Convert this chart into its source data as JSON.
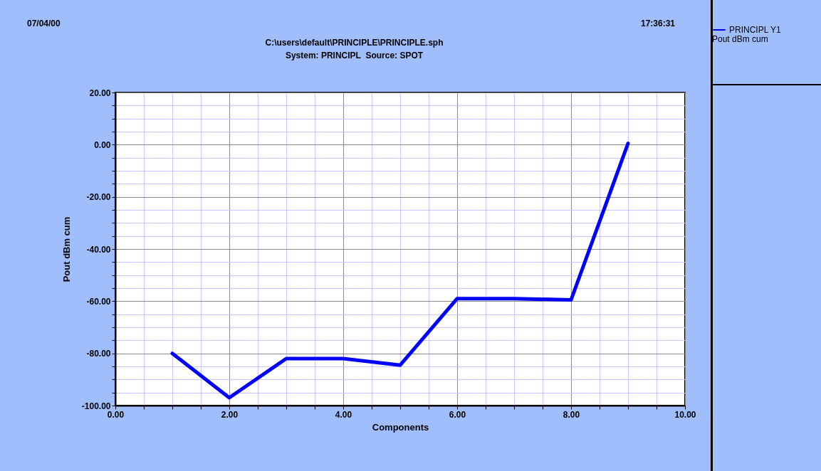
{
  "chart_data": {
    "type": "line",
    "title": "C:\\users\\default\\PRINCIPLE\\PRINCIPLE.sph",
    "subtitle": "System: PRINCIPL  Source: SPOT",
    "xlabel": "Components",
    "ylabel": "Pout dBm cum",
    "legend_title": "Pout dBm cum",
    "annotations": [
      "07/04/00",
      "17:36:31"
    ],
    "x": [
      1,
      2,
      3,
      4,
      5,
      6,
      7,
      8,
      9
    ],
    "series": [
      {
        "name": "PRINCIPL  Y1",
        "color": "#0000ff",
        "values": [
          -80,
          -97,
          -82,
          -82,
          -84.5,
          -59,
          -59,
          -59.5,
          0.5
        ]
      }
    ],
    "xlim": [
      0,
      10
    ],
    "xticks": [
      {
        "value": 0,
        "label": "0.00"
      },
      {
        "value": 0.5,
        "label": null
      },
      {
        "value": 1,
        "label": null
      },
      {
        "value": 1.5,
        "label": null
      },
      {
        "value": 2,
        "label": "2.00"
      },
      {
        "value": 2.5,
        "label": null
      },
      {
        "value": 3,
        "label": null
      },
      {
        "value": 3.5,
        "label": null
      },
      {
        "value": 4,
        "label": "4.00"
      },
      {
        "value": 4.5,
        "label": null
      },
      {
        "value": 5,
        "label": null
      },
      {
        "value": 5.5,
        "label": null
      },
      {
        "value": 6,
        "label": "6.00"
      },
      {
        "value": 6.5,
        "label": null
      },
      {
        "value": 7,
        "label": null
      },
      {
        "value": 7.5,
        "label": null
      },
      {
        "value": 8,
        "label": "8.00"
      },
      {
        "value": 8.5,
        "label": null
      },
      {
        "value": 9,
        "label": null
      },
      {
        "value": 9.5,
        "label": null
      },
      {
        "value": 10,
        "label": "10.00"
      }
    ],
    "ylim": [
      -100,
      20
    ],
    "yticks": [
      {
        "value": -100,
        "label": "-100.00"
      },
      {
        "value": -95,
        "label": null
      },
      {
        "value": -90,
        "label": null
      },
      {
        "value": -85,
        "label": null
      },
      {
        "value": -80,
        "label": "-80.00"
      },
      {
        "value": -75,
        "label": null
      },
      {
        "value": -70,
        "label": null
      },
      {
        "value": -65,
        "label": null
      },
      {
        "value": -60,
        "label": "-60.00"
      },
      {
        "value": -55,
        "label": null
      },
      {
        "value": -50,
        "label": null
      },
      {
        "value": -45,
        "label": null
      },
      {
        "value": -40,
        "label": "-40.00"
      },
      {
        "value": -35,
        "label": null
      },
      {
        "value": -30,
        "label": null
      },
      {
        "value": -25,
        "label": null
      },
      {
        "value": -20,
        "label": "-20.00"
      },
      {
        "value": -15,
        "label": null
      },
      {
        "value": -10,
        "label": null
      },
      {
        "value": -5,
        "label": null
      },
      {
        "value": 0,
        "label": "0.00"
      },
      {
        "value": 5,
        "label": null
      },
      {
        "value": 10,
        "label": null
      },
      {
        "value": 15,
        "label": null
      },
      {
        "value": 20,
        "label": "20.00"
      }
    ],
    "grid": true,
    "legend": "top right",
    "line_style": "solid"
  }
}
